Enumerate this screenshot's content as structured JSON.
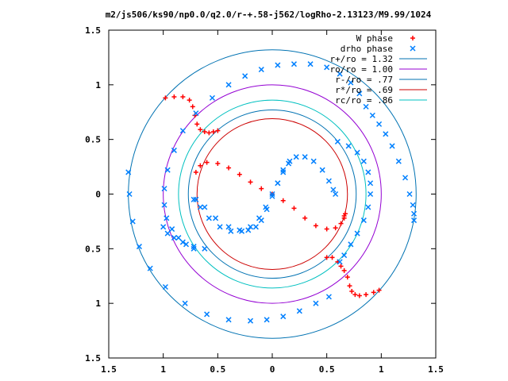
{
  "chart_data": {
    "type": "scatter",
    "title": "m2/js506/ks90/np0.0/q2.0/r-+.58-j562/logRho-2.13123/M9.99/1024",
    "xlim": [
      -1.5,
      1.5
    ],
    "ylim": [
      -1.5,
      1.5
    ],
    "x_ticks": [
      {
        "value": -1.5,
        "label": "1.5"
      },
      {
        "value": -1.0,
        "label": "1"
      },
      {
        "value": -0.5,
        "label": "0.5"
      },
      {
        "value": 0.0,
        "label": "0"
      },
      {
        "value": 0.5,
        "label": "0.5"
      },
      {
        "value": 1.0,
        "label": "1"
      },
      {
        "value": 1.5,
        "label": "1.5"
      }
    ],
    "y_ticks": [
      {
        "value": 1.5,
        "label": "1.5"
      },
      {
        "value": 1.0,
        "label": "1"
      },
      {
        "value": 0.5,
        "label": "0.5"
      },
      {
        "value": 0.0,
        "label": "0"
      },
      {
        "value": -0.5,
        "label": "0.5"
      },
      {
        "value": -1.0,
        "label": "1"
      },
      {
        "value": -1.5,
        "label": "1.5"
      }
    ],
    "grid": false,
    "legend_position": "top-right",
    "circles": [
      {
        "name": "r+/ro = 1.32",
        "radius": 1.32,
        "color": "#0072b2"
      },
      {
        "name": "ro/ro = 1.00",
        "radius": 1.0,
        "color": "#9400d3"
      },
      {
        "name": "r-/ro = .77",
        "radius": 0.77,
        "color": "#0072b2"
      },
      {
        "name": "r*/ro = .69",
        "radius": 0.69,
        "color": "#cc0000"
      },
      {
        "name": "rc/ro = .86",
        "radius": 0.86,
        "color": "#00c0c0"
      }
    ],
    "series": [
      {
        "name": "W phase",
        "marker": "+",
        "color": "#ff0000",
        "x": [
          -0.98,
          -0.9,
          -0.82,
          -0.76,
          -0.73,
          -0.71,
          -0.69,
          -0.66,
          -0.62,
          -0.58,
          -0.54,
          -0.5,
          0.5,
          0.55,
          0.6,
          0.63,
          0.66,
          0.69,
          0.71,
          0.73,
          0.76,
          0.8,
          0.86,
          0.93,
          0.98,
          -0.7,
          -0.66,
          -0.6,
          -0.5,
          -0.4,
          -0.3,
          -0.2,
          -0.1,
          0.0,
          0.1,
          0.2,
          0.3,
          0.4,
          0.5,
          0.58,
          0.63,
          0.66,
          0.67,
          0.66
        ],
        "y": [
          0.88,
          0.89,
          0.89,
          0.86,
          0.8,
          0.72,
          0.64,
          0.59,
          0.57,
          0.56,
          0.57,
          0.58,
          -0.58,
          -0.58,
          -0.62,
          -0.66,
          -0.7,
          -0.76,
          -0.84,
          -0.89,
          -0.92,
          -0.93,
          -0.92,
          -0.9,
          -0.88,
          0.2,
          0.26,
          0.29,
          0.28,
          0.24,
          0.18,
          0.11,
          0.05,
          0.0,
          -0.06,
          -0.13,
          -0.22,
          -0.29,
          -0.32,
          -0.31,
          -0.27,
          -0.22,
          -0.18,
          -0.2
        ]
      },
      {
        "name": "drho phase",
        "marker": "x",
        "color": "#0080ff",
        "x": [
          -0.72,
          -0.79,
          -0.86,
          -0.92,
          -0.97,
          -0.99,
          -0.99,
          -0.96,
          -0.9,
          -0.82,
          -0.7,
          -0.55,
          -0.4,
          -0.25,
          -0.1,
          0.05,
          0.2,
          0.35,
          0.5,
          0.62,
          0.72,
          0.8,
          0.86,
          0.92,
          0.98,
          1.04,
          1.1,
          1.16,
          1.22,
          1.26,
          1.29,
          1.3,
          1.3,
          0.6,
          0.7,
          0.78,
          0.84,
          0.88,
          0.9,
          0.9,
          0.88,
          0.84,
          0.78,
          0.72,
          0.66,
          0.62,
          -0.7,
          -0.62,
          -0.52,
          -0.4,
          -0.3,
          -0.22,
          -0.15,
          -0.1,
          -0.05,
          0.0,
          0.05,
          0.1,
          0.16,
          0.22,
          0.3,
          0.38,
          0.46,
          0.52,
          0.56,
          0.58,
          -0.72,
          -0.66,
          -0.58,
          -0.48,
          -0.38,
          -0.28,
          -0.2,
          -0.12,
          -0.06,
          0.0,
          0.05,
          0.1,
          0.15,
          -0.62,
          -0.72,
          -0.82,
          -0.9,
          -0.96,
          -1.0,
          -1.32,
          -1.31,
          -1.28,
          -1.22,
          -1.12,
          -0.98,
          -0.8,
          -0.6,
          -0.4,
          -0.2,
          -0.05,
          0.1,
          0.25,
          0.4,
          0.52
        ],
        "y": [
          -0.5,
          -0.46,
          -0.4,
          -0.32,
          -0.22,
          -0.1,
          0.05,
          0.22,
          0.4,
          0.58,
          0.74,
          0.88,
          1.0,
          1.08,
          1.14,
          1.18,
          1.19,
          1.19,
          1.16,
          1.1,
          1.02,
          0.92,
          0.8,
          0.72,
          0.64,
          0.55,
          0.44,
          0.3,
          0.15,
          0.0,
          -0.1,
          -0.18,
          -0.24,
          0.48,
          0.44,
          0.38,
          0.3,
          0.2,
          0.1,
          0.0,
          -0.12,
          -0.24,
          -0.36,
          -0.46,
          -0.56,
          -0.62,
          -0.05,
          -0.12,
          -0.22,
          -0.3,
          -0.33,
          -0.33,
          -0.3,
          -0.24,
          -0.14,
          -0.02,
          0.1,
          0.22,
          0.3,
          0.34,
          0.34,
          0.3,
          0.22,
          0.12,
          0.04,
          0.0,
          -0.05,
          -0.12,
          -0.22,
          -0.3,
          -0.34,
          -0.34,
          -0.3,
          -0.22,
          -0.12,
          0.0,
          0.1,
          0.2,
          0.28,
          -0.5,
          -0.48,
          -0.44,
          -0.4,
          -0.36,
          -0.3,
          0.2,
          0.0,
          -0.25,
          -0.48,
          -0.68,
          -0.85,
          -1.0,
          -1.1,
          -1.15,
          -1.16,
          -1.15,
          -1.12,
          -1.07,
          -1.0,
          -0.94
        ]
      }
    ]
  }
}
